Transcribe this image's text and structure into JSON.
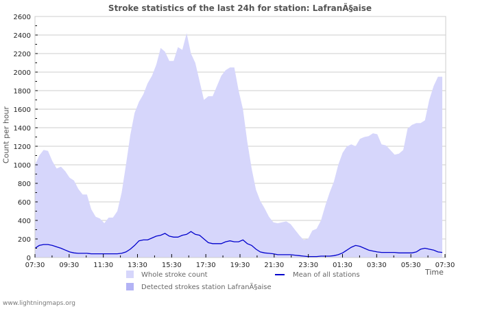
{
  "title": "Stroke statistics of the last 24h for station: LafranÃ§aise",
  "footer": "www.lightningmaps.org",
  "chart_data": {
    "type": "area",
    "title": "Stroke statistics of the last 24h for station: LafranÃ§aise",
    "xlabel": "Time",
    "ylabel": "Count per hour",
    "ylim": [
      0,
      2600
    ],
    "yticks": [
      0,
      200,
      400,
      600,
      800,
      1000,
      1200,
      1400,
      1600,
      1800,
      2000,
      2200,
      2400,
      2600
    ],
    "xtick_labels": [
      "07:30",
      "09:30",
      "11:30",
      "13:30",
      "15:30",
      "17:30",
      "19:30",
      "21:30",
      "23:30",
      "01:30",
      "03:30",
      "05:30",
      "07:30"
    ],
    "grid": true,
    "legend_position": "bottom",
    "series": [
      {
        "name": "Whole stroke count",
        "type": "area",
        "color": "#d6d6fb",
        "values": [
          1000,
          1100,
          1160,
          1150,
          1040,
          960,
          980,
          930,
          860,
          830,
          740,
          680,
          680,
          520,
          440,
          420,
          370,
          430,
          430,
          500,
          700,
          1000,
          1320,
          1560,
          1680,
          1760,
          1880,
          1960,
          2080,
          2260,
          2220,
          2120,
          2120,
          2270,
          2240,
          2420,
          2200,
          2100,
          1900,
          1700,
          1740,
          1740,
          1850,
          1960,
          2020,
          2050,
          2050,
          1800,
          1600,
          1250,
          960,
          730,
          610,
          530,
          440,
          380,
          370,
          380,
          390,
          360,
          300,
          240,
          190,
          200,
          290,
          310,
          400,
          560,
          700
        ]
      },
      {
        "name": "Detected strokes station LafranÃ§aise",
        "type": "area",
        "color": "#b3b3f5",
        "values": []
      },
      {
        "name": "Mean of all stations",
        "type": "line",
        "color": "#0000cc",
        "values": [
          100,
          130,
          140,
          140,
          130,
          115,
          100,
          80,
          60,
          50,
          45,
          45,
          45,
          40,
          40,
          40,
          40,
          40,
          40,
          40,
          45,
          60,
          90,
          130,
          180,
          190,
          190,
          210,
          230,
          240,
          260,
          230,
          220,
          220,
          240,
          250,
          280,
          250,
          240,
          200,
          160,
          150,
          150,
          150,
          170,
          180,
          170,
          170,
          190,
          150,
          130,
          90,
          60,
          50,
          45,
          40,
          30,
          30,
          30,
          30,
          25,
          20,
          15,
          10,
          10,
          10,
          15,
          15,
          15
        ]
      }
    ],
    "series_tail": {
      "whole": [
        820,
        1000,
        1130,
        1200,
        1220,
        1200,
        1280,
        1300,
        1310,
        1340,
        1330,
        1220,
        1210,
        1160,
        1110,
        1120,
        1160,
        1390,
        1430,
        1450,
        1450,
        1480,
        1700,
        1850,
        1950,
        1950
      ],
      "mean": [
        20,
        30,
        50,
        80,
        110,
        130,
        120,
        100,
        80,
        70,
        60,
        55,
        55,
        55,
        55,
        50,
        50,
        50,
        50,
        60,
        90,
        100,
        90,
        80,
        60,
        55
      ]
    }
  },
  "legend": [
    {
      "label": "Whole stroke count",
      "color": "#d6d6fb"
    },
    {
      "label": "Mean of all stations",
      "color": "#0000cc"
    },
    {
      "label": "Detected strokes station LafranÃ§aise",
      "color": "#b3b3f5"
    }
  ]
}
